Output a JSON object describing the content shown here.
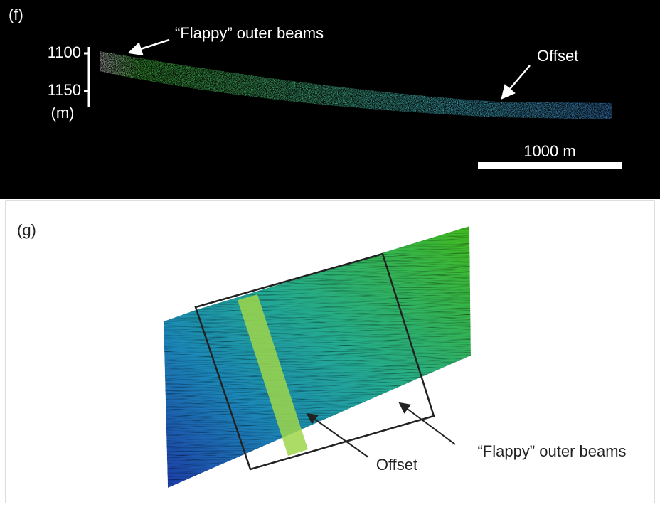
{
  "panel_f": {
    "label": "(f)",
    "depth_ticks": [
      1100,
      1150
    ],
    "depth_unit": "(m)",
    "annotation_flappy": "“Flappy” outer beams",
    "annotation_offset": "Offset",
    "scale_bar": "1000 m"
  },
  "panel_g": {
    "label": "(g)",
    "annotation_offset": "Offset",
    "annotation_flappy": "“Flappy” outer beams"
  }
}
